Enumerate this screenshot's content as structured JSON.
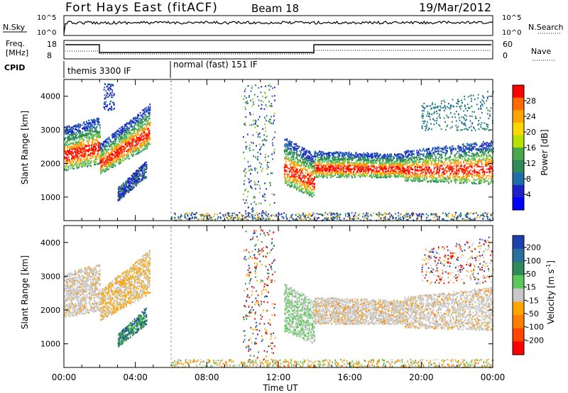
{
  "header": {
    "title": "Fort Hays East (fitACF)",
    "beam": "Beam 18",
    "date": "19/Mar/2012"
  },
  "params": {
    "nsky_label": "N.Sky",
    "nsearch_label": "N.Search",
    "noise_ticks": [
      "10^5",
      "10^0"
    ],
    "freq_label_1": "Freq.",
    "freq_label_2": "[MHz]",
    "freq_ticks": [
      "18",
      "8"
    ],
    "nave_label": "Nave",
    "nave_ticks": [
      "60",
      "0"
    ],
    "cpid_label": "CPID",
    "cpid_segments": [
      {
        "name": "themis 3300 IF",
        "start_hr": 0,
        "end_hr": 6
      },
      {
        "name": "normal (fast) 151 IF",
        "start_hr": 6,
        "end_hr": 24
      }
    ]
  },
  "chart_data": [
    {
      "type": "heatmap",
      "title": "",
      "ylabel": "Slant Range [km]",
      "xlabel": "",
      "xlim_hr": [
        0,
        24
      ],
      "ylim": [
        300,
        4500
      ],
      "yticks": [
        "4000",
        "3000",
        "2000",
        "1000"
      ],
      "colorbar": {
        "label": "Power [dB]",
        "ticks": [
          "28",
          "24",
          "20",
          "16",
          "12",
          "8",
          "4"
        ],
        "colors": [
          "#ff0000",
          "#ff6a00",
          "#ffa500",
          "#ffd700",
          "#b8e000",
          "#4aa84a",
          "#2e8b57",
          "#1f6ea8",
          "#2020c8",
          "#0000ff"
        ]
      }
    },
    {
      "type": "heatmap",
      "title": "",
      "ylabel": "Slant Range [km]",
      "xlabel": "Time UT",
      "xlim_hr": [
        0,
        24
      ],
      "ylim": [
        300,
        4500
      ],
      "yticks": [
        "4000",
        "3000",
        "2000",
        "1000"
      ],
      "xticks": [
        "00:00",
        "04:00",
        "08:00",
        "12:00",
        "16:00",
        "20:00",
        "00:00"
      ],
      "colorbar": {
        "label": "Velocity [m s",
        "label_sup": "-1",
        "label_end": "]",
        "ticks": [
          "200",
          "100",
          "50",
          "15",
          "-15",
          "-50",
          "-100",
          "-200"
        ],
        "colors": [
          "#1f3fb0",
          "#2a6e9e",
          "#2e8b57",
          "#5ac85a",
          "#c8c8c8",
          "#ffa500",
          "#ff7f00",
          "#ff4500",
          "#ff0000"
        ]
      }
    }
  ]
}
